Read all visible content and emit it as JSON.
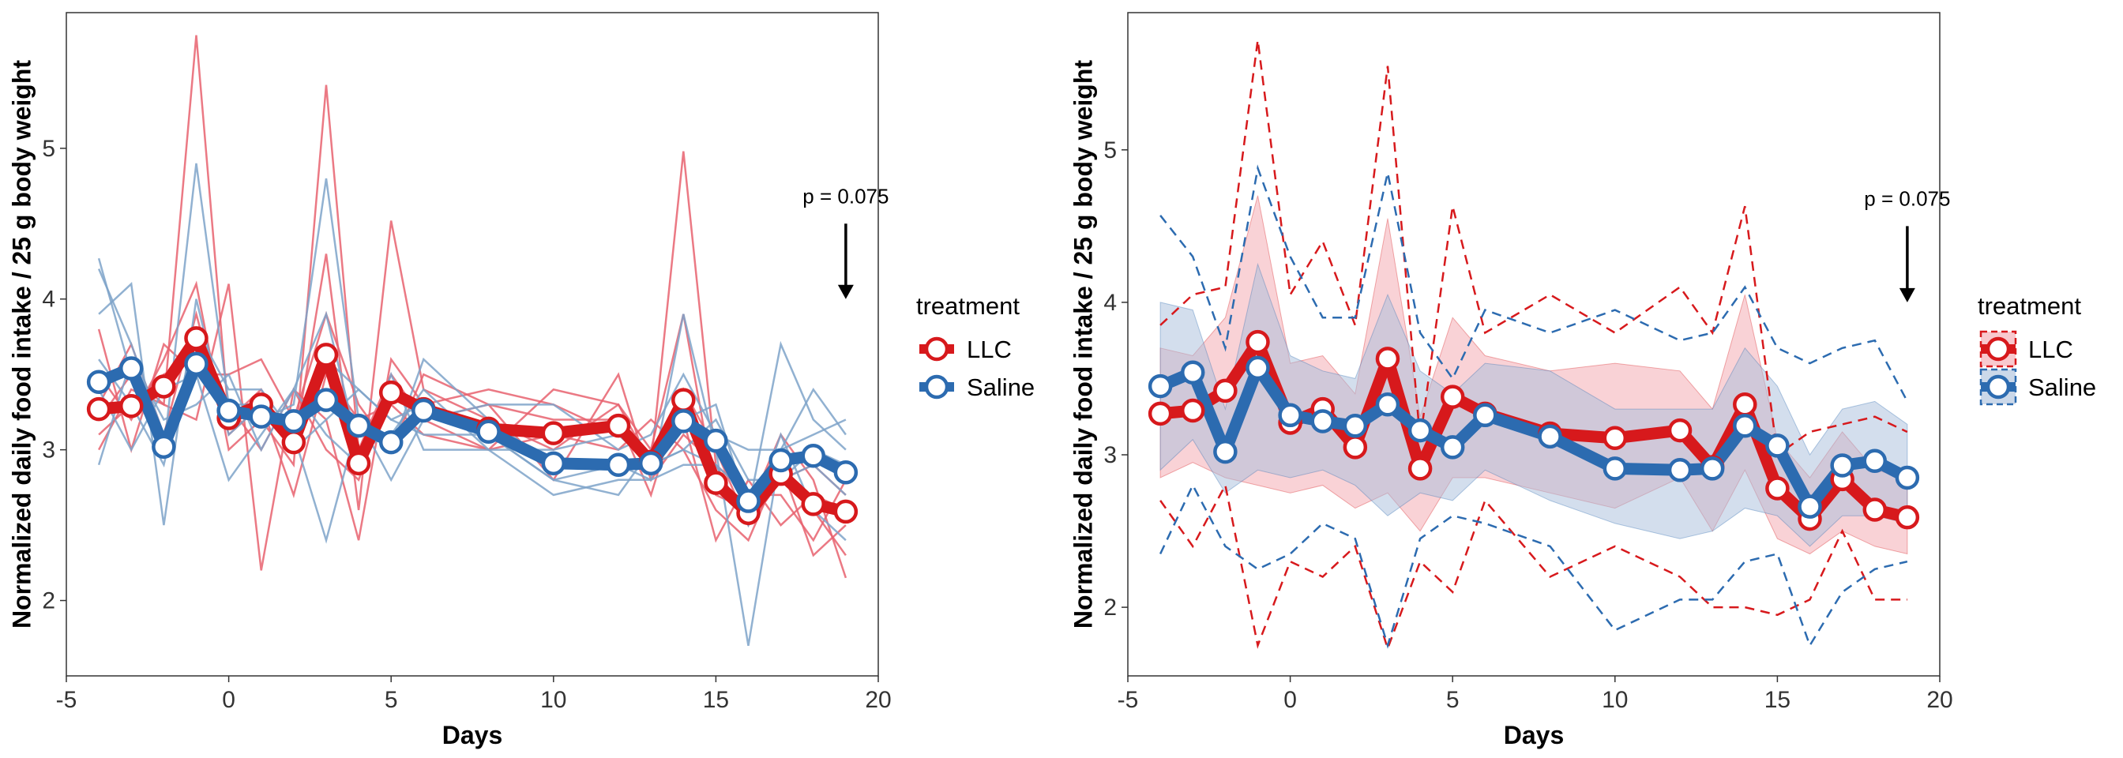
{
  "chart_data": [
    {
      "type": "line",
      "variant": "individual-traces",
      "xlabel": "Days",
      "ylabel": "Normalized daily food intake / 25 g body weight",
      "xlim": [
        -5,
        20
      ],
      "ylim": [
        1.5,
        5.9
      ],
      "x_ticks": [
        -5,
        0,
        5,
        10,
        15,
        20
      ],
      "y_ticks": [
        2,
        3,
        4,
        5
      ],
      "x_tick_labels": [
        "-5",
        "0",
        "5",
        "10",
        "15",
        "20"
      ],
      "y_tick_labels": [
        "2",
        "3",
        "4",
        "5"
      ],
      "legend": {
        "title": "treatment",
        "position": "right"
      },
      "annotation": {
        "text": "p = 0.075",
        "x": 19,
        "arrow_from_y": 4.5,
        "arrow_to_y": 4.0
      },
      "grid": false,
      "x": [
        -4,
        -3,
        -2,
        -1,
        0,
        1,
        2,
        3,
        4,
        5,
        6,
        8,
        10,
        12,
        13,
        14,
        15,
        16,
        17,
        18,
        19
      ],
      "series": [
        {
          "name": "LLC",
          "color": "#d7191c",
          "values": [
            3.27,
            3.29,
            3.42,
            3.74,
            3.21,
            3.3,
            3.05,
            3.63,
            2.91,
            3.38,
            3.27,
            3.14,
            3.11,
            3.16,
            2.92,
            3.33,
            2.78,
            2.58,
            2.84,
            2.64,
            2.59
          ]
        },
        {
          "name": "Saline",
          "color": "#2c6bb0",
          "values": [
            3.45,
            3.54,
            3.02,
            3.57,
            3.26,
            3.22,
            3.19,
            3.33,
            3.16,
            3.05,
            3.26,
            3.12,
            2.91,
            2.9,
            2.91,
            3.19,
            3.06,
            2.66,
            2.93,
            2.96,
            2.85
          ]
        }
      ],
      "traces": [
        {
          "group": "LLC",
          "values": [
            3.0,
            3.4,
            3.3,
            5.75,
            3.2,
            3.4,
            3.0,
            4.3,
            2.6,
            4.52,
            3.4,
            3.2,
            3.0,
            3.3,
            2.9,
            4.98,
            2.9,
            2.5,
            2.8,
            2.6,
            2.3
          ]
        },
        {
          "group": "LLC",
          "values": [
            3.5,
            3.2,
            3.6,
            4.1,
            3.0,
            3.2,
            2.9,
            5.42,
            3.0,
            3.5,
            3.2,
            3.0,
            3.4,
            3.3,
            3.0,
            3.9,
            2.7,
            2.6,
            3.1,
            2.8,
            2.15
          ]
        },
        {
          "group": "LLC",
          "values": [
            3.2,
            3.5,
            3.3,
            3.2,
            4.1,
            2.2,
            3.4,
            3.2,
            2.4,
            3.6,
            3.3,
            3.4,
            3.3,
            3.1,
            2.9,
            3.2,
            2.4,
            2.8,
            2.5,
            2.7,
            2.6
          ]
        },
        {
          "group": "LLC",
          "values": [
            3.8,
            3.0,
            3.7,
            3.5,
            3.5,
            3.6,
            3.2,
            3.9,
            3.3,
            3.0,
            3.5,
            3.3,
            2.8,
            3.5,
            2.8,
            3.1,
            2.9,
            2.7,
            2.7,
            2.4,
            2.8
          ]
        },
        {
          "group": "LLC",
          "values": [
            3.3,
            3.7,
            3.1,
            3.9,
            3.1,
            3.3,
            2.7,
            3.5,
            3.2,
            3.3,
            3.1,
            3.0,
            3.1,
            3.0,
            3.2,
            3.0,
            2.6,
            2.4,
            2.9,
            2.3,
            2.5
          ]
        },
        {
          "group": "LLC",
          "values": [
            3.1,
            3.3,
            3.5,
            3.6,
            3.3,
            3.0,
            3.4,
            3.0,
            2.8,
            3.4,
            3.2,
            3.3,
            3.2,
            3.2,
            2.7,
            3.4,
            3.0,
            2.5,
            2.8,
            2.9,
            2.7
          ]
        },
        {
          "group": "Saline",
          "values": [
            4.27,
            3.5,
            3.0,
            4.9,
            3.3,
            3.2,
            3.3,
            4.8,
            3.2,
            3.0,
            3.6,
            3.2,
            2.9,
            2.9,
            2.8,
            3.9,
            3.0,
            1.7,
            3.0,
            3.1,
            3.2
          ]
        },
        {
          "group": "Saline",
          "values": [
            3.9,
            4.1,
            2.5,
            4.0,
            3.1,
            3.3,
            3.0,
            3.6,
            3.4,
            3.2,
            3.3,
            3.1,
            2.8,
            2.7,
            3.0,
            3.2,
            3.3,
            2.6,
            3.7,
            3.2,
            3.0
          ]
        },
        {
          "group": "Saline",
          "values": [
            2.9,
            3.6,
            3.2,
            3.3,
            3.5,
            3.0,
            3.4,
            3.1,
            2.9,
            3.5,
            3.0,
            3.0,
            3.0,
            3.1,
            2.9,
            3.0,
            2.9,
            2.7,
            2.8,
            2.9,
            2.7
          ]
        },
        {
          "group": "Saline",
          "values": [
            3.6,
            3.3,
            2.9,
            3.8,
            3.4,
            3.4,
            3.1,
            2.4,
            3.2,
            2.8,
            3.2,
            3.3,
            3.3,
            3.0,
            3.1,
            3.5,
            3.1,
            3.0,
            3.0,
            3.4,
            3.1
          ]
        },
        {
          "group": "Saline",
          "values": [
            3.4,
            3.0,
            3.4,
            3.5,
            2.8,
            3.1,
            3.4,
            3.9,
            3.0,
            3.1,
            3.4,
            3.0,
            2.7,
            2.8,
            2.8,
            2.9,
            2.9,
            2.5,
            3.1,
            2.6,
            2.4
          ]
        },
        {
          "group": "Saline",
          "values": [
            4.2,
            3.7,
            3.1,
            3.6,
            3.3,
            3.3,
            3.0,
            3.2,
            3.4,
            3.2,
            3.1,
            3.1,
            2.8,
            2.9,
            2.9,
            3.0,
            3.2,
            2.8,
            2.8,
            3.0,
            2.9
          ]
        }
      ]
    },
    {
      "type": "line",
      "variant": "mean-ribbon-range",
      "xlabel": "Days",
      "ylabel": "Normalized daily food intake / 25 g body weight",
      "xlim": [
        -5,
        20
      ],
      "ylim": [
        1.55,
        5.9
      ],
      "x_ticks": [
        -5,
        0,
        5,
        10,
        15,
        20
      ],
      "y_ticks": [
        2,
        3,
        4,
        5
      ],
      "x_tick_labels": [
        "-5",
        "0",
        "5",
        "10",
        "15",
        "20"
      ],
      "y_tick_labels": [
        "2",
        "3",
        "4",
        "5"
      ],
      "legend": {
        "title": "treatment",
        "position": "right"
      },
      "annotation": {
        "text": "p = 0.075",
        "x": 19,
        "arrow_from_y": 4.5,
        "arrow_to_y": 4.0
      },
      "grid": false,
      "x": [
        -4,
        -3,
        -2,
        -1,
        0,
        1,
        2,
        3,
        4,
        5,
        6,
        8,
        10,
        12,
        13,
        14,
        15,
        16,
        17,
        18,
        19
      ],
      "series": [
        {
          "name": "LLC",
          "color": "#d7191c",
          "fill": "#f4a5ad",
          "values": [
            3.27,
            3.29,
            3.42,
            3.74,
            3.21,
            3.3,
            3.05,
            3.63,
            2.91,
            3.38,
            3.27,
            3.14,
            3.11,
            3.16,
            2.92,
            3.33,
            2.78,
            2.58,
            2.84,
            2.64,
            2.59
          ],
          "ribbon_low": [
            2.85,
            2.95,
            2.85,
            2.8,
            2.75,
            2.8,
            2.65,
            2.75,
            2.5,
            2.85,
            2.85,
            2.75,
            2.65,
            2.85,
            2.5,
            2.9,
            2.45,
            2.35,
            2.5,
            2.4,
            2.35
          ],
          "ribbon_high": [
            3.7,
            3.65,
            3.9,
            4.7,
            3.6,
            3.65,
            3.4,
            4.55,
            3.25,
            3.9,
            3.65,
            3.55,
            3.6,
            3.55,
            3.3,
            4.05,
            3.1,
            2.85,
            3.15,
            2.9,
            2.85
          ],
          "min": [
            2.7,
            2.4,
            2.8,
            1.75,
            2.3,
            2.2,
            2.4,
            1.73,
            2.3,
            2.1,
            2.7,
            2.2,
            2.4,
            2.2,
            2.0,
            2.0,
            1.95,
            2.05,
            2.5,
            2.05,
            2.05
          ],
          "max": [
            3.85,
            4.05,
            4.1,
            5.72,
            4.05,
            4.4,
            3.85,
            5.55,
            3.1,
            4.63,
            3.8,
            4.05,
            3.8,
            4.1,
            3.8,
            4.63,
            3.0,
            3.15,
            3.2,
            3.25,
            3.15
          ]
        },
        {
          "name": "Saline",
          "color": "#2c6bb0",
          "fill": "#a8bedb",
          "values": [
            3.45,
            3.54,
            3.02,
            3.57,
            3.26,
            3.22,
            3.19,
            3.33,
            3.16,
            3.05,
            3.26,
            3.12,
            2.91,
            2.9,
            2.91,
            3.19,
            3.06,
            2.66,
            2.93,
            2.96,
            2.85
          ],
          "ribbon_low": [
            2.9,
            3.1,
            2.75,
            2.9,
            2.85,
            2.9,
            2.8,
            2.6,
            2.75,
            2.7,
            2.9,
            2.7,
            2.55,
            2.45,
            2.5,
            2.65,
            2.6,
            2.4,
            2.6,
            2.6,
            2.55
          ],
          "ribbon_high": [
            4.0,
            3.95,
            3.3,
            4.25,
            3.65,
            3.55,
            3.5,
            4.05,
            3.55,
            3.4,
            3.6,
            3.55,
            3.3,
            3.3,
            3.3,
            3.7,
            3.45,
            3.0,
            3.3,
            3.35,
            3.2
          ],
          "min": [
            2.35,
            2.8,
            2.4,
            2.25,
            2.35,
            2.55,
            2.45,
            1.75,
            2.45,
            2.6,
            2.55,
            2.4,
            1.85,
            2.05,
            2.05,
            2.3,
            2.35,
            1.75,
            2.1,
            2.25,
            2.3
          ],
          "max": [
            4.57,
            4.3,
            3.7,
            4.88,
            4.3,
            3.9,
            3.9,
            4.85,
            3.8,
            3.5,
            3.95,
            3.8,
            3.95,
            3.75,
            3.8,
            4.1,
            3.7,
            3.6,
            3.7,
            3.75,
            3.35
          ]
        }
      ]
    }
  ],
  "legend_title": "treatment",
  "legend_items": [
    "LLC",
    "Saline"
  ],
  "axis_title_x": "Days",
  "axis_title_y": "Normalized daily food intake / 25 g body weight",
  "annotation_text": "p = 0.075"
}
